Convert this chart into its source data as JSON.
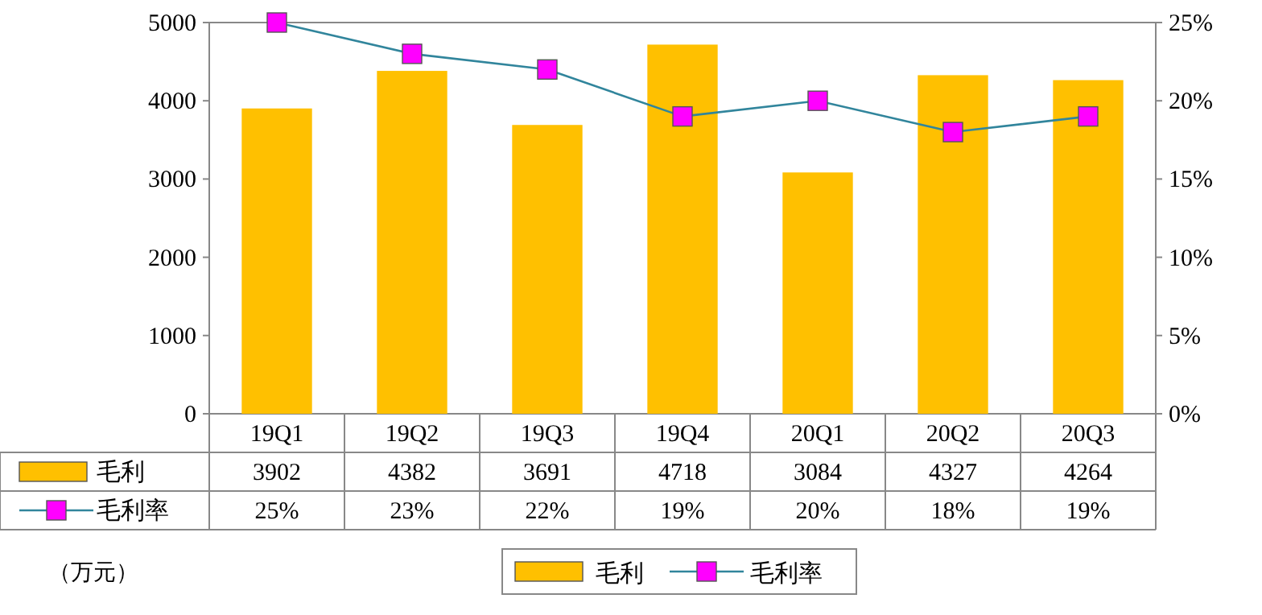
{
  "chart_data": {
    "type": "bar",
    "categories": [
      "19Q1",
      "19Q2",
      "19Q3",
      "19Q4",
      "20Q1",
      "20Q2",
      "20Q3"
    ],
    "series": [
      {
        "name": "毛利",
        "color": "#ffc000",
        "values": [
          3902,
          4382,
          3691,
          4718,
          3084,
          4327,
          4264
        ],
        "value_labels": [
          "3902",
          "4382",
          "3691",
          "4718",
          "3084",
          "4327",
          "4264"
        ]
      },
      {
        "name": "毛利率",
        "type": "line",
        "axis": "y2",
        "color": "#31859c",
        "values": [
          25,
          23,
          22,
          19,
          20,
          18,
          19
        ],
        "value_labels": [
          "25%",
          "23%",
          "22%",
          "19%",
          "20%",
          "18%",
          "19%"
        ]
      }
    ],
    "ylim": [
      0,
      5000
    ],
    "yticks": [
      0,
      1000,
      2000,
      3000,
      4000,
      5000
    ],
    "y2lim": [
      0,
      25
    ],
    "y2ticks": [
      {
        "value": 0,
        "label": "0%"
      },
      {
        "value": 5,
        "label": "5%"
      },
      {
        "value": 10,
        "label": "10%"
      },
      {
        "value": 15,
        "label": "15%"
      },
      {
        "value": 20,
        "label": "20%"
      },
      {
        "value": 25,
        "label": "25%"
      }
    ],
    "marker": "square",
    "legend": "bottom",
    "grid": false,
    "annotations": [
      "（万元）"
    ]
  }
}
